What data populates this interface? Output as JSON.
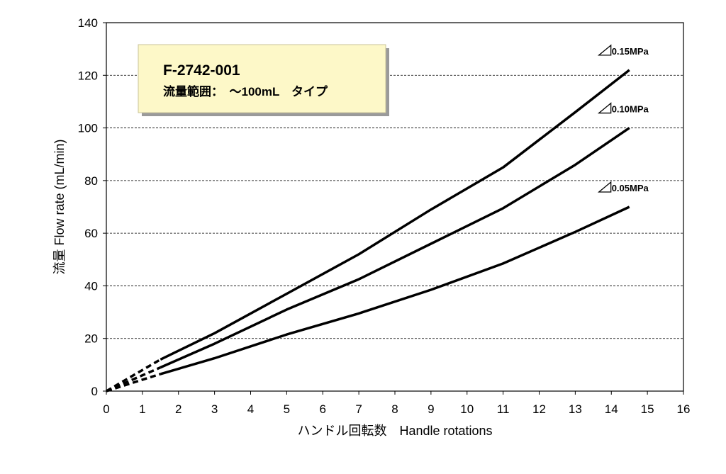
{
  "chart_data": {
    "type": "line",
    "xlabel": "ハンドル回転数　Handle rotations",
    "ylabel": "流量 Flow rate (mL/min)",
    "xlim": [
      0,
      16
    ],
    "ylim": [
      0,
      140
    ],
    "x_ticks": [
      "0",
      "1",
      "2",
      "3",
      "4",
      "5",
      "6",
      "7",
      "8",
      "9",
      "10",
      "11",
      "12",
      "13",
      "14",
      "15",
      "16"
    ],
    "y_ticks": [
      "0",
      "20",
      "40",
      "60",
      "80",
      "100",
      "120",
      "140"
    ],
    "grid": "horizontal dashed",
    "annotation": {
      "title": "F-2742-001",
      "subtitle": "流量範囲：　～100mL　タイプ"
    },
    "series": [
      {
        "name": "0.15MPa",
        "solid": [
          [
            1.5,
            12
          ],
          [
            3,
            22
          ],
          [
            5,
            37
          ],
          [
            7,
            52
          ],
          [
            9,
            69
          ],
          [
            11,
            85
          ],
          [
            13,
            106
          ],
          [
            14.5,
            122
          ]
        ],
        "dashed": [
          [
            0,
            0
          ],
          [
            1.5,
            12
          ]
        ]
      },
      {
        "name": "0.10MPa",
        "solid": [
          [
            1.5,
            9
          ],
          [
            3,
            18
          ],
          [
            5,
            31
          ],
          [
            7,
            42.5
          ],
          [
            9,
            56
          ],
          [
            11,
            69.5
          ],
          [
            13,
            86
          ],
          [
            14.5,
            100
          ]
        ],
        "dashed": [
          [
            0,
            0
          ],
          [
            1.5,
            9
          ]
        ]
      },
      {
        "name": "0.05MPa",
        "solid": [
          [
            1.5,
            6.5
          ],
          [
            3,
            12.5
          ],
          [
            5,
            21.5
          ],
          [
            7,
            29.5
          ],
          [
            9,
            38.5
          ],
          [
            11,
            48.5
          ],
          [
            13,
            60.5
          ],
          [
            14.5,
            70
          ]
        ],
        "dashed": [
          [
            0,
            0
          ],
          [
            1.5,
            6.5
          ]
        ]
      }
    ],
    "colors": {
      "line": "#000000",
      "grid": "#000000",
      "annotation_fill": "#fdf8c8",
      "annotation_border": "#c9c39a",
      "annotation_shadow": "#9a9a9a"
    }
  }
}
